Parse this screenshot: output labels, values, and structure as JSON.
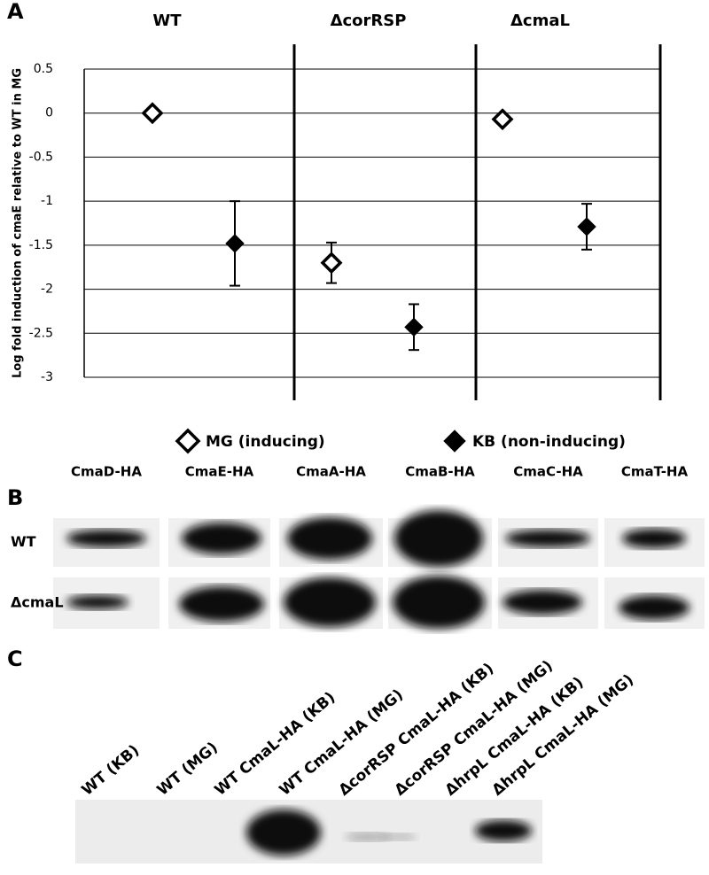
{
  "panel_labels": {
    "a": "A",
    "b": "B",
    "c": "C"
  },
  "chart_data": {
    "type": "scatter",
    "ylabel": "Log fold induction of cmaE relative to WT in MG",
    "categories": [
      "WT",
      "ΔcorRSP",
      "ΔcmaL"
    ],
    "series": [
      {
        "name": "MG (inducing)",
        "color": "#000000",
        "marker": "open-diamond",
        "values": [
          0,
          -1.7,
          -0.07
        ],
        "errors": [
          0.02,
          0.23,
          0.05
        ]
      },
      {
        "name": "KB (non-inducing)",
        "color": "#000000",
        "marker": "filled-diamond",
        "values": [
          -1.48,
          -2.43,
          -1.29
        ],
        "errors": [
          0.48,
          0.26,
          0.26
        ]
      }
    ],
    "ylim": [
      -3,
      0.5
    ],
    "yticks": [
      0.5,
      0,
      -0.5,
      -1,
      -1.5,
      -2,
      -2.5,
      -3
    ],
    "grid": true
  },
  "panel_b": {
    "columns": [
      "CmaD-HA",
      "CmaE-HA",
      "CmaA-HA",
      "CmaB-HA",
      "CmaC-HA",
      "CmaT-HA"
    ],
    "rows": [
      "WT",
      "ΔcmaL"
    ]
  },
  "panel_c": {
    "lanes": [
      "WT (KB)",
      "WT (MG)",
      "WT CmaL-HA (KB)",
      "WT CmaL-HA (MG)",
      "ΔcorRSP CmaL-HA (KB)",
      "ΔcorRSP CmaL-HA (MG)",
      "ΔhrpL CmaL-HA (KB)",
      "ΔhrpL CmaL-HA (MG)"
    ]
  }
}
